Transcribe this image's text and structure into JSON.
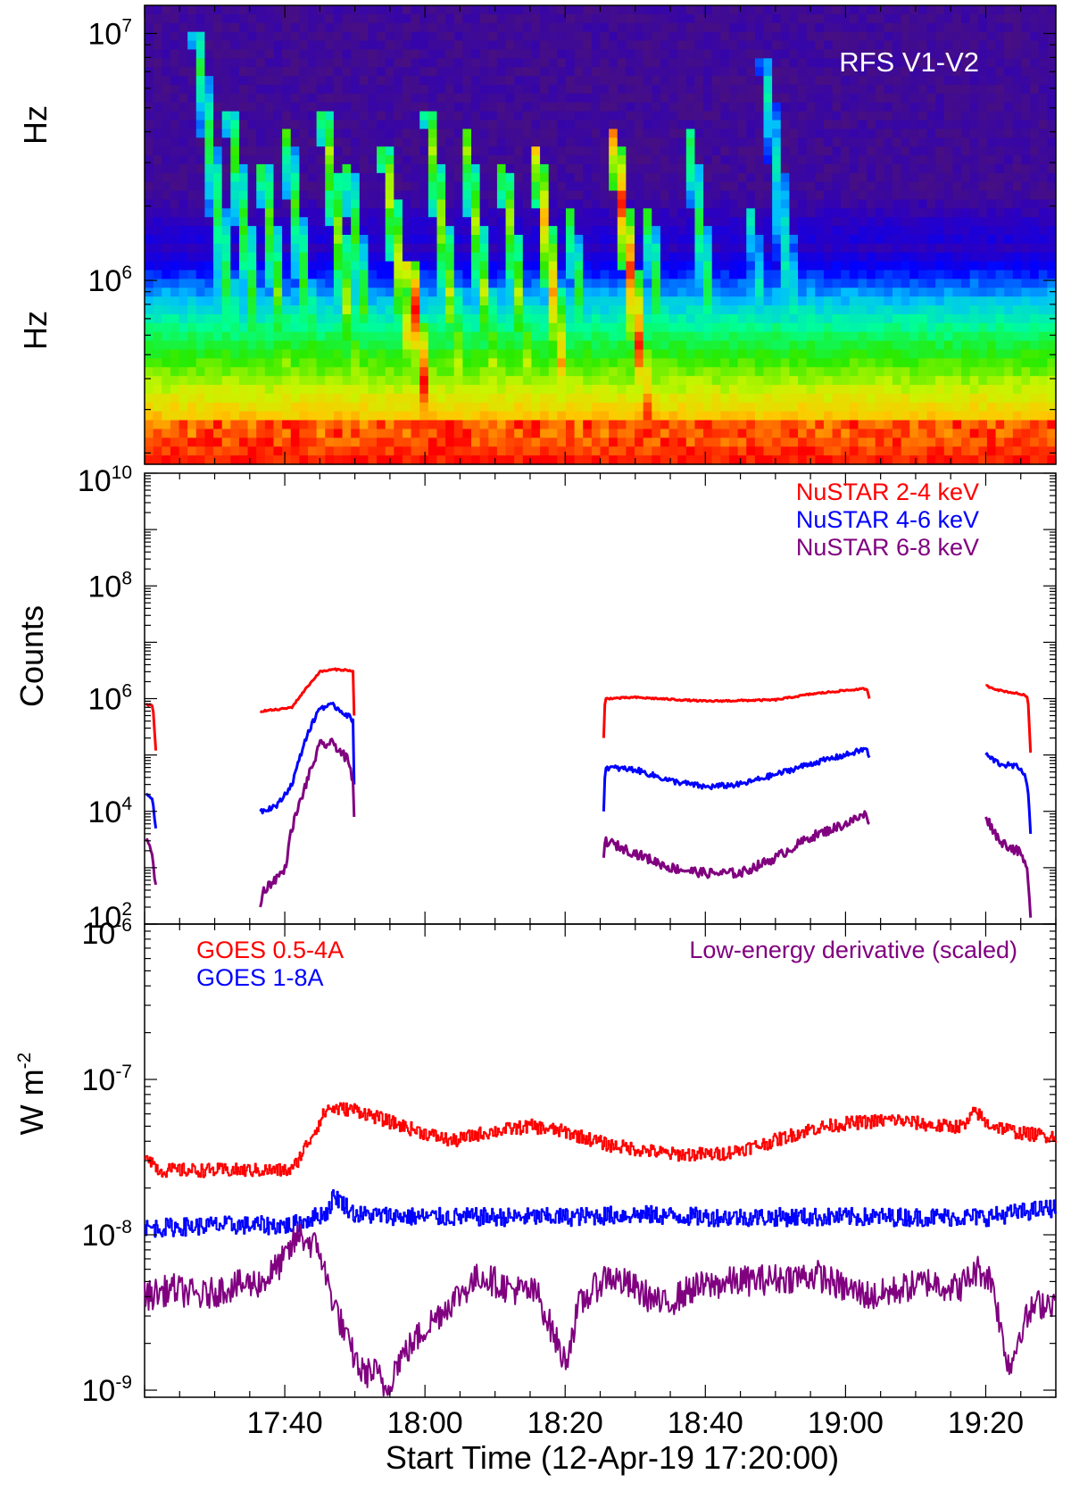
{
  "colors": {
    "red": "#ff0000",
    "blue": "#0000ff",
    "purple": "#800080",
    "axis": "#000000"
  },
  "xaxis": {
    "label": "Start Time (12-Apr-19 17:20:00)",
    "range_minutes_after_1720": [
      0,
      130
    ],
    "tick_labels": [
      {
        "label": "17:40",
        "minute": 20
      },
      {
        "label": "18:00",
        "minute": 40
      },
      {
        "label": "18:20",
        "minute": 60
      },
      {
        "label": "18:40",
        "minute": 80
      },
      {
        "label": "19:00",
        "minute": 100
      },
      {
        "label": "19:20",
        "minute": 120
      }
    ]
  },
  "chart_data": [
    {
      "type": "heatmap",
      "title": "RFS V1-V2",
      "ylabel_top": "Hz",
      "ylabel_bottom": "Hz",
      "yscale": "log",
      "yrange_hz": [
        180000,
        13000000
      ],
      "ytick_labels": [
        {
          "base": "10",
          "exp": "7",
          "value": 10000000
        },
        {
          "base": "10",
          "exp": "6",
          "value": 1000000
        }
      ],
      "colormap": "rainbow (blue low, red high)",
      "type_iii_bursts": [
        {
          "start_min": 7.4,
          "top_mhz": 10,
          "intensity": 0.55
        },
        {
          "start_min": 12.1,
          "top_mhz": 5,
          "intensity": 0.6
        },
        {
          "start_min": 16.8,
          "top_mhz": 3,
          "intensity": 0.65
        },
        {
          "start_min": 20.2,
          "top_mhz": 4,
          "intensity": 0.6
        },
        {
          "start_min": 25.5,
          "top_mhz": 5,
          "intensity": 0.7
        },
        {
          "start_min": 28.9,
          "top_mhz": 3,
          "intensity": 0.6
        },
        {
          "start_min": 34.2,
          "top_mhz": 3.5,
          "intensity": 0.75
        },
        {
          "start_min": 37.8,
          "top_mhz": 1.2,
          "intensity": 1.0
        },
        {
          "start_min": 40.4,
          "top_mhz": 5,
          "intensity": 0.7
        },
        {
          "start_min": 45.7,
          "top_mhz": 4,
          "intensity": 0.7
        },
        {
          "start_min": 51.1,
          "top_mhz": 3,
          "intensity": 0.7
        },
        {
          "start_min": 55.8,
          "top_mhz": 3.5,
          "intensity": 0.85
        },
        {
          "start_min": 60.5,
          "top_mhz": 2,
          "intensity": 0.6
        },
        {
          "start_min": 66.9,
          "top_mhz": 4,
          "intensity": 0.95
        },
        {
          "start_min": 71.6,
          "top_mhz": 2,
          "intensity": 0.6
        },
        {
          "start_min": 77.6,
          "top_mhz": 4,
          "intensity": 0.55
        },
        {
          "start_min": 86.3,
          "top_mhz": 2,
          "intensity": 0.45
        },
        {
          "start_min": 88.3,
          "top_mhz": 8,
          "intensity": 0.45
        },
        {
          "start_min": 90.3,
          "top_mhz": 2,
          "intensity": 0.45
        }
      ]
    },
    {
      "type": "line",
      "ylabel": "Counts",
      "yscale": "log",
      "ylim": [
        100,
        10000000000
      ],
      "ytick_labels": [
        {
          "base": "10",
          "exp": "10",
          "value": 10000000000
        },
        {
          "base": "10",
          "exp": "8",
          "value": 100000000
        },
        {
          "base": "10",
          "exp": "6",
          "value": 1000000
        },
        {
          "base": "10",
          "exp": "4",
          "value": 10000
        },
        {
          "base": "10",
          "exp": "2",
          "value": 100
        }
      ],
      "legend": [
        {
          "label": "NuSTAR 2-4 keV",
          "color": "#ff0000"
        },
        {
          "label": "NuSTAR 4-6 keV",
          "color": "#0000ff"
        },
        {
          "label": "NuSTAR 6-8 keV",
          "color": "#800080"
        }
      ],
      "series": [
        {
          "name": "NuSTAR 2-4 keV",
          "color": "#ff0000",
          "segments": [
            [
              [
                0.2,
                800000
              ],
              [
                1,
                750000
              ],
              [
                1.2,
                700000
              ],
              [
                1.6,
                120000
              ]
            ],
            [
              [
                16.5,
                600000
              ],
              [
                19.5,
                650000
              ],
              [
                21,
                700000
              ],
              [
                23,
                1500000
              ],
              [
                25,
                3000000
              ],
              [
                27,
                3300000
              ],
              [
                29,
                3200000
              ],
              [
                29.8,
                3000000
              ],
              [
                29.9,
                500000
              ]
            ],
            [
              [
                65.5,
                200000
              ],
              [
                65.7,
                1000000
              ],
              [
                70,
                1050000
              ],
              [
                80,
                900000
              ],
              [
                90,
                950000
              ],
              [
                95,
                1200000
              ],
              [
                100,
                1400000
              ],
              [
                103,
                1500000
              ],
              [
                103.4,
                1000000
              ]
            ],
            [
              [
                120,
                1700000
              ],
              [
                122,
                1400000
              ],
              [
                125,
                1200000
              ],
              [
                126,
                1100000
              ],
              [
                126.4,
                110000
              ]
            ]
          ]
        },
        {
          "name": "NuSTAR 4-6 keV",
          "color": "#0000ff",
          "segments": [
            [
              [
                0.2,
                20000
              ],
              [
                1,
                18000
              ],
              [
                1.2,
                15000
              ],
              [
                1.6,
                5000
              ]
            ],
            [
              [
                16.5,
                10000
              ],
              [
                19,
                13000
              ],
              [
                21,
                30000
              ],
              [
                23,
                200000
              ],
              [
                25,
                700000
              ],
              [
                27,
                750000
              ],
              [
                29,
                500000
              ],
              [
                29.8,
                400000
              ],
              [
                29.9,
                30000
              ]
            ],
            [
              [
                65.5,
                10000
              ],
              [
                65.7,
                60000
              ],
              [
                70,
                55000
              ],
              [
                75,
                35000
              ],
              [
                80,
                27000
              ],
              [
                85,
                30000
              ],
              [
                90,
                45000
              ],
              [
                95,
                70000
              ],
              [
                100,
                100000
              ],
              [
                103,
                130000
              ],
              [
                103.4,
                90000
              ]
            ],
            [
              [
                120,
                100000
              ],
              [
                122,
                70000
              ],
              [
                125,
                60000
              ],
              [
                126,
                30000
              ],
              [
                126.4,
                4000
              ]
            ]
          ]
        },
        {
          "name": "NuSTAR 6-8 keV",
          "color": "#800080",
          "segments": [
            [
              [
                0.2,
                3000
              ],
              [
                1,
                2000
              ],
              [
                1.2,
                1200
              ],
              [
                1.6,
                500
              ]
            ],
            [
              [
                16.5,
                200
              ],
              [
                17,
                400
              ],
              [
                19,
                700
              ],
              [
                20,
                900
              ],
              [
                21,
                5000
              ],
              [
                23,
                30000
              ],
              [
                25,
                150000
              ],
              [
                27,
                160000
              ],
              [
                29,
                80000
              ],
              [
                29.8,
                30000
              ],
              [
                29.9,
                8000
              ]
            ],
            [
              [
                65.5,
                1500
              ],
              [
                65.7,
                3000
              ],
              [
                70,
                1800
              ],
              [
                75,
                1000
              ],
              [
                80,
                800
              ],
              [
                85,
                800
              ],
              [
                90,
                1500
              ],
              [
                95,
                3500
              ],
              [
                100,
                6000
              ],
              [
                103,
                9000
              ],
              [
                103.4,
                6000
              ]
            ],
            [
              [
                120,
                8000
              ],
              [
                122,
                3000
              ],
              [
                125,
                1800
              ],
              [
                126,
                800
              ],
              [
                126.4,
                130
              ]
            ]
          ]
        }
      ]
    },
    {
      "type": "line",
      "ylabel": "W m",
      "ylabel_exp": "-2",
      "yscale": "log",
      "ylim": [
        9e-10,
        1e-06
      ],
      "ytick_labels": [
        {
          "base": "10",
          "exp": "-6",
          "value": 1e-06
        },
        {
          "base": "10",
          "exp": "-7",
          "value": 1e-07
        },
        {
          "base": "10",
          "exp": "-8",
          "value": 1e-08
        },
        {
          "base": "10",
          "exp": "-9",
          "value": 1e-09
        }
      ],
      "legend_left": [
        {
          "label": "GOES 0.5-4A",
          "color": "#ff0000"
        },
        {
          "label": "GOES 1-8A",
          "color": "#0000ff"
        }
      ],
      "legend_right": {
        "label": "Low-energy derivative (scaled)",
        "color": "#800080"
      },
      "series": [
        {
          "name": "GOES 0.5-4A",
          "color": "#ff0000",
          "noise_dex": 0.045,
          "points": [
            [
              0,
              3.4e-08
            ],
            [
              2,
              2.6e-08
            ],
            [
              10,
              2.6e-08
            ],
            [
              21,
              2.6e-08
            ],
            [
              24,
              4.5e-08
            ],
            [
              26,
              6.5e-08
            ],
            [
              30,
              6.4e-08
            ],
            [
              34,
              5.5e-08
            ],
            [
              40,
              4.5e-08
            ],
            [
              44,
              4e-08
            ],
            [
              48,
              4.5e-08
            ],
            [
              55,
              5e-08
            ],
            [
              60,
              4.6e-08
            ],
            [
              66,
              3.8e-08
            ],
            [
              75,
              3.3e-08
            ],
            [
              82,
              3.3e-08
            ],
            [
              88,
              3.8e-08
            ],
            [
              95,
              4.8e-08
            ],
            [
              100,
              5.2e-08
            ],
            [
              107,
              5.5e-08
            ],
            [
              113,
              5e-08
            ],
            [
              117,
              5e-08
            ],
            [
              118.5,
              6.3e-08
            ],
            [
              120,
              5.2e-08
            ],
            [
              125,
              4.5e-08
            ],
            [
              130,
              4.3e-08
            ]
          ]
        },
        {
          "name": "GOES 1-8A",
          "color": "#0000ff",
          "noise_dex": 0.06,
          "points": [
            [
              0,
              1.1e-08
            ],
            [
              10,
              1.15e-08
            ],
            [
              21,
              1.15e-08
            ],
            [
              26,
              1.4e-08
            ],
            [
              27,
              1.8e-08
            ],
            [
              30,
              1.35e-08
            ],
            [
              40,
              1.3e-08
            ],
            [
              50,
              1.3e-08
            ],
            [
              60,
              1.3e-08
            ],
            [
              70,
              1.35e-08
            ],
            [
              80,
              1.3e-08
            ],
            [
              90,
              1.3e-08
            ],
            [
              100,
              1.3e-08
            ],
            [
              110,
              1.3e-08
            ],
            [
              120,
              1.3e-08
            ],
            [
              130,
              1.5e-08
            ]
          ]
        },
        {
          "name": "Low-energy derivative (scaled)",
          "color": "#800080",
          "noise_dex": 0.1,
          "points": [
            [
              0,
              4e-09
            ],
            [
              4,
              4.5e-09
            ],
            [
              8,
              4e-09
            ],
            [
              12,
              4.6e-09
            ],
            [
              17,
              5e-09
            ],
            [
              20,
              7e-09
            ],
            [
              22,
              1e-08
            ],
            [
              25,
              8e-09
            ],
            [
              26,
              5e-09
            ],
            [
              29,
              2e-09
            ],
            [
              31,
              1.3e-09
            ],
            [
              33,
              1.3e-09
            ],
            [
              34.5,
              1e-09
            ],
            [
              36,
              1.5e-09
            ],
            [
              40,
              2.5e-09
            ],
            [
              44,
              3.8e-09
            ],
            [
              48,
              5.5e-09
            ],
            [
              52,
              4.5e-09
            ],
            [
              56,
              4.2e-09
            ],
            [
              58,
              2.5e-09
            ],
            [
              60,
              1.5e-09
            ],
            [
              62,
              3.5e-09
            ],
            [
              66,
              5.5e-09
            ],
            [
              70,
              4.5e-09
            ],
            [
              74,
              3.5e-09
            ],
            [
              78,
              4.5e-09
            ],
            [
              84,
              5e-09
            ],
            [
              90,
              5.2e-09
            ],
            [
              96,
              5.5e-09
            ],
            [
              100,
              4.5e-09
            ],
            [
              104,
              4e-09
            ],
            [
              108,
              4.5e-09
            ],
            [
              112,
              5e-09
            ],
            [
              116,
              4.5e-09
            ],
            [
              119,
              6e-09
            ],
            [
              121,
              5e-09
            ],
            [
              122.5,
              2e-09
            ],
            [
              123.5,
              1.4e-09
            ],
            [
              125,
              2.5e-09
            ],
            [
              127,
              3.5e-09
            ],
            [
              130,
              3.8e-09
            ]
          ]
        }
      ]
    }
  ]
}
